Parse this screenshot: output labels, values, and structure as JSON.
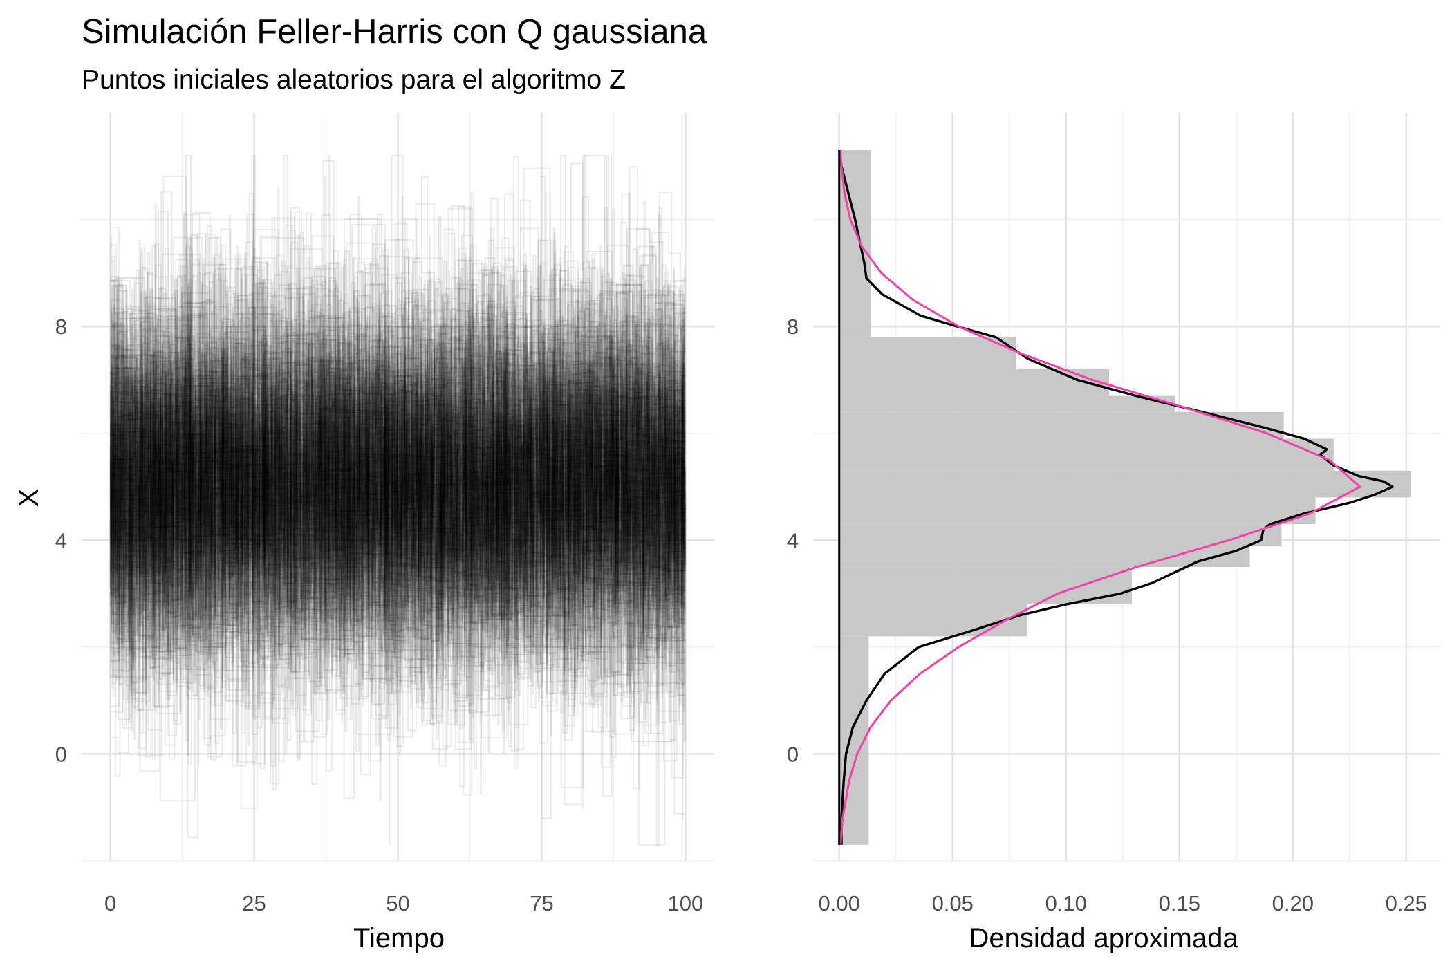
{
  "chart_data": [
    {
      "type": "line",
      "title": "Simulación Feller-Harris con Q gaussiana",
      "subtitle": "Puntos iniciales aleatorios para el algoritmo Z",
      "xlabel": "Tiempo",
      "ylabel": "X",
      "xlim": [
        -5,
        105
      ],
      "ylim": [
        -2,
        12
      ],
      "x_ticks": [
        "0",
        "25",
        "50",
        "75",
        "100"
      ],
      "y_ticks": [
        "0",
        "4",
        "8"
      ],
      "grid": true,
      "line_color": "#000000",
      "line_opacity": 0.08,
      "series_count": 300,
      "series_pattern": "step paths over Tiempo 0–100, centred near X = 5 with spread of about 2"
    },
    {
      "type": "histogram",
      "orientation": "horizontal",
      "xlabel": "Densidad aproximada",
      "ylabel": "",
      "xlim": [
        -0.0115,
        0.265
      ],
      "ylim": [
        -2,
        12
      ],
      "x_ticks": [
        "0.00",
        "0.05",
        "0.10",
        "0.15",
        "0.20",
        "0.25"
      ],
      "y_ticks": [
        "0",
        "4",
        "8"
      ],
      "grid": true,
      "bar_color": "#c8c8c8",
      "bins": [
        {
          "y0": -1.7,
          "y1": 2.2,
          "density": 0.013
        },
        {
          "y0": 2.2,
          "y1": 2.8,
          "density": 0.083
        },
        {
          "y0": 2.8,
          "y1": 3.5,
          "density": 0.129
        },
        {
          "y0": 3.5,
          "y1": 3.9,
          "density": 0.181
        },
        {
          "y0": 3.9,
          "y1": 4.3,
          "density": 0.195
        },
        {
          "y0": 4.3,
          "y1": 4.8,
          "density": 0.21
        },
        {
          "y0": 4.8,
          "y1": 5.3,
          "density": 0.252
        },
        {
          "y0": 5.3,
          "y1": 5.9,
          "density": 0.218
        },
        {
          "y0": 5.9,
          "y1": 6.4,
          "density": 0.196
        },
        {
          "y0": 6.4,
          "y1": 6.7,
          "density": 0.148
        },
        {
          "y0": 6.7,
          "y1": 7.2,
          "density": 0.119
        },
        {
          "y0": 7.2,
          "y1": 7.8,
          "density": 0.078
        },
        {
          "y0": 7.8,
          "y1": 11.3,
          "density": 0.014
        }
      ],
      "series": [
        {
          "color": "#000000",
          "points": [
            [
              -1.7,
              0.001
            ],
            [
              -1.2,
              0.001
            ],
            [
              -0.5,
              0.002
            ],
            [
              0.0,
              0.003
            ],
            [
              0.5,
              0.006
            ],
            [
              1.0,
              0.012
            ],
            [
              1.5,
              0.02
            ],
            [
              2.0,
              0.035
            ],
            [
              2.3,
              0.058
            ],
            [
              2.6,
              0.08
            ],
            [
              2.8,
              0.1
            ],
            [
              3.0,
              0.124
            ],
            [
              3.2,
              0.138
            ],
            [
              3.4,
              0.148
            ],
            [
              3.6,
              0.158
            ],
            [
              3.8,
              0.175
            ],
            [
              4.0,
              0.186
            ],
            [
              4.2,
              0.187
            ],
            [
              4.3,
              0.19
            ],
            [
              4.5,
              0.205
            ],
            [
              4.7,
              0.225
            ],
            [
              4.85,
              0.236
            ],
            [
              5.0,
              0.244
            ],
            [
              5.1,
              0.24
            ],
            [
              5.2,
              0.229
            ],
            [
              5.4,
              0.218
            ],
            [
              5.6,
              0.212
            ],
            [
              5.7,
              0.215
            ],
            [
              5.9,
              0.205
            ],
            [
              6.1,
              0.188
            ],
            [
              6.4,
              0.16
            ],
            [
              6.7,
              0.131
            ],
            [
              7.0,
              0.105
            ],
            [
              7.4,
              0.083
            ],
            [
              7.8,
              0.069
            ],
            [
              8.0,
              0.052
            ],
            [
              8.2,
              0.036
            ],
            [
              8.6,
              0.019
            ],
            [
              8.9,
              0.012
            ],
            [
              9.2,
              0.011
            ],
            [
              9.6,
              0.009
            ],
            [
              10.0,
              0.007
            ],
            [
              10.5,
              0.004
            ],
            [
              11.0,
              0.001
            ],
            [
              11.3,
              0.0
            ]
          ]
        },
        {
          "color": "#f042a8",
          "points": [
            [
              -1.7,
              0.0006
            ],
            [
              -1.2,
              0.0015
            ],
            [
              -0.5,
              0.0044
            ],
            [
              0.0,
              0.0079
            ],
            [
              0.5,
              0.0138
            ],
            [
              1.0,
              0.0228
            ],
            [
              1.5,
              0.0356
            ],
            [
              2.0,
              0.0526
            ],
            [
              2.5,
              0.0733
            ],
            [
              3.0,
              0.0963
            ],
            [
              3.5,
              0.1312
            ],
            [
              4.0,
              0.1718
            ],
            [
              4.5,
              0.2076
            ],
            [
              5.0,
              0.2296
            ],
            [
              5.5,
              0.2161
            ],
            [
              6.0,
              0.1886
            ],
            [
              6.5,
              0.1509
            ],
            [
              7.0,
              0.1116
            ],
            [
              7.5,
              0.0797
            ],
            [
              8.0,
              0.0527
            ],
            [
              8.5,
              0.0324
            ],
            [
              9.0,
              0.0186
            ],
            [
              9.5,
              0.0099
            ],
            [
              10.0,
              0.0049
            ],
            [
              10.5,
              0.0023
            ],
            [
              11.0,
              0.001
            ],
            [
              11.3,
              0.0006
            ]
          ]
        }
      ]
    }
  ]
}
